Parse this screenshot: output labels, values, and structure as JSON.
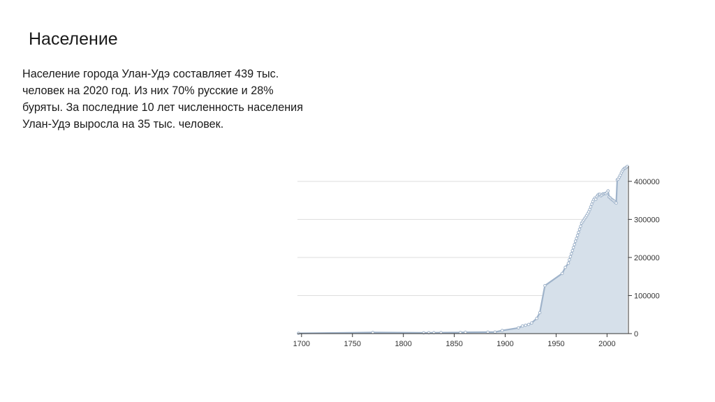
{
  "slide": {
    "title": "Население",
    "text": "Население города Улан-Удэ составляет 439 тыс. человек на 2020 год. Из них 70% русские и 28% буряты. За последние 10 лет численность населения Улан-Удэ выросла на 35 тыс. человек."
  },
  "chart_data": {
    "type": "area",
    "title": "",
    "xlabel": "",
    "ylabel": "",
    "xlim": [
      1696,
      2021
    ],
    "ylim": [
      0,
      440000
    ],
    "grid": true,
    "legend": "none",
    "x_ticks": [
      1700,
      1750,
      1800,
      1850,
      1900,
      1950,
      2000
    ],
    "y_ticks": [
      0,
      100000,
      200000,
      300000,
      400000
    ],
    "colors": {
      "fill": "#d6e0ea",
      "line": "#9fb3ca",
      "grid": "#dddddd",
      "axis": "#333333"
    },
    "series": [
      {
        "x": [
          1697,
          1770,
          1820,
          1825,
          1830,
          1837,
          1856,
          1861,
          1883,
          1890,
          1897,
          1913,
          1917,
          1920,
          1923,
          1926,
          1931,
          1934,
          1939,
          1956,
          1959,
          1962,
          1963,
          1964,
          1965,
          1966,
          1967,
          1968,
          1969,
          1970,
          1971,
          1972,
          1973,
          1974,
          1975,
          1976,
          1977,
          1978,
          1979,
          1980,
          1981,
          1982,
          1983,
          1984,
          1985,
          1986,
          1987,
          1988,
          1989,
          1990,
          1991,
          1992,
          1993,
          1994,
          1995,
          1996,
          1997,
          1998,
          1999,
          2000,
          2001,
          2002,
          2003,
          2004,
          2005,
          2006,
          2007,
          2008,
          2009,
          2010,
          2011,
          2012,
          2013,
          2014,
          2015,
          2016,
          2017,
          2018,
          2019,
          2020
        ],
        "y": [
          700,
          3000,
          2000,
          2200,
          2300,
          2500,
          3000,
          3500,
          3800,
          4000,
          8000,
          15000,
          20000,
          22000,
          24000,
          28000,
          40000,
          55000,
          126000,
          158000,
          174000,
          185000,
          194000,
          202000,
          210000,
          218000,
          226000,
          234000,
          243000,
          250000,
          258000,
          266000,
          274000,
          282000,
          290000,
          294000,
          298000,
          302000,
          306000,
          310000,
          315000,
          320000,
          326000,
          333000,
          340000,
          347000,
          352000,
          356000,
          353000,
          360000,
          364000,
          366000,
          366000,
          362000,
          364000,
          367000,
          367000,
          368000,
          368000,
          371000,
          375000,
          359000,
          357000,
          354000,
          352000,
          350000,
          348000,
          345000,
          343000,
          404000,
          406000,
          411000,
          416000,
          422000,
          427000,
          431000,
          434000,
          435000,
          437000,
          439000
        ]
      }
    ]
  }
}
